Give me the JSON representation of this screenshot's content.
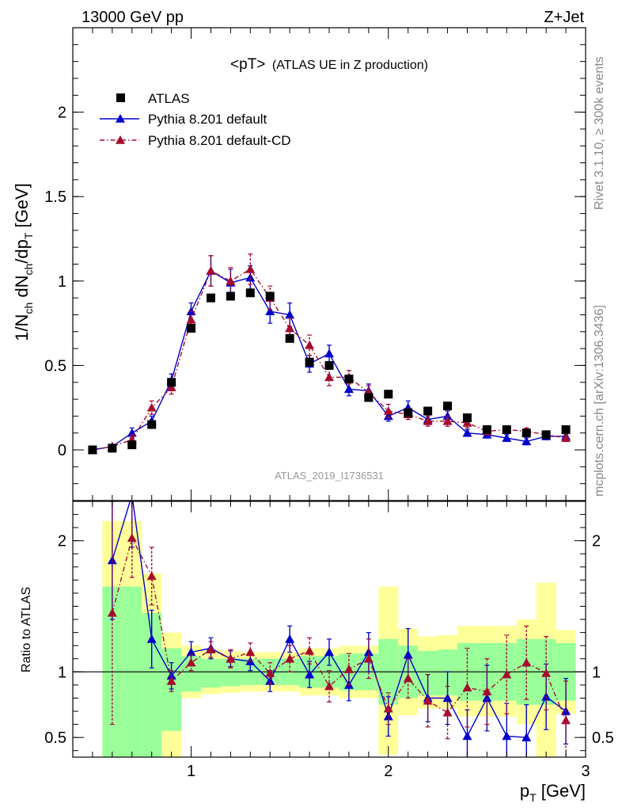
{
  "header": {
    "energy_label": "13000 GeV pp",
    "process_label": "Z+Jet",
    "plot_title_main": "<pT>",
    "plot_title_sub": "(ATLAS UE in Z production)",
    "analysis_id": "ATLAS_2019_I1736531",
    "side_text_top": "Rivet 3.1.10, ≥ 300k events",
    "side_text_bottom": "mcplots.cern.ch [arXiv:1306.3436]"
  },
  "chart_data": [
    {
      "type": "scatter",
      "panel": "main",
      "ylabel": "1/N_ch dN_ch/dp_T [GeV]",
      "xlim": [
        0.4,
        3.0
      ],
      "ylim": [
        -0.3,
        2.5
      ],
      "yticks": [
        0,
        0.5,
        1,
        1.5,
        2
      ],
      "ytick_labels": [
        "0",
        "0.5",
        "1",
        "1.5",
        "2"
      ],
      "legend_position": "top-left",
      "series": [
        {
          "name": "ATLAS",
          "color": "#000000",
          "marker": "square",
          "x": [
            0.5,
            0.6,
            0.7,
            0.8,
            0.9,
            1.0,
            1.1,
            1.2,
            1.3,
            1.4,
            1.5,
            1.6,
            1.7,
            1.8,
            1.9,
            2.0,
            2.1,
            2.2,
            2.3,
            2.4,
            2.5,
            2.6,
            2.7,
            2.8,
            2.9
          ],
          "y": [
            0.0,
            0.01,
            0.03,
            0.15,
            0.4,
            0.72,
            0.9,
            0.91,
            0.93,
            0.91,
            0.66,
            0.52,
            0.5,
            0.42,
            0.31,
            0.33,
            0.22,
            0.23,
            0.26,
            0.19,
            0.12,
            0.12,
            0.1,
            0.09,
            0.12
          ]
        },
        {
          "name": "Pythia 8.201 default",
          "color": "#0000cc",
          "marker": "triangle",
          "line": "solid",
          "x": [
            0.5,
            0.6,
            0.7,
            0.8,
            0.9,
            1.0,
            1.1,
            1.2,
            1.3,
            1.4,
            1.5,
            1.6,
            1.7,
            1.8,
            1.9,
            2.0,
            2.1,
            2.2,
            2.3,
            2.4,
            2.5,
            2.6,
            2.7,
            2.8,
            2.9
          ],
          "y": [
            0.0,
            0.02,
            0.1,
            0.17,
            0.41,
            0.82,
            1.06,
            0.99,
            1.02,
            0.82,
            0.8,
            0.51,
            0.57,
            0.36,
            0.35,
            0.2,
            0.25,
            0.18,
            0.2,
            0.1,
            0.09,
            0.07,
            0.05,
            0.08,
            0.08
          ],
          "err": [
            0,
            0.01,
            0.03,
            0.03,
            0.04,
            0.05,
            0.09,
            0.08,
            0.07,
            0.07,
            0.07,
            0.05,
            0.05,
            0.04,
            0.04,
            0.03,
            0.04,
            0.03,
            0.03,
            0.02,
            0.02,
            0.02,
            0.02,
            0.02,
            0.02
          ]
        },
        {
          "name": "Pythia 8.201 default-CD",
          "color": "#a50c2e",
          "marker": "triangle",
          "line": "dash-dot",
          "x": [
            0.5,
            0.6,
            0.7,
            0.8,
            0.9,
            1.0,
            1.1,
            1.2,
            1.3,
            1.4,
            1.5,
            1.6,
            1.7,
            1.8,
            1.9,
            2.0,
            2.1,
            2.2,
            2.3,
            2.4,
            2.5,
            2.6,
            2.7,
            2.8,
            2.9
          ],
          "y": [
            0.0,
            0.02,
            0.06,
            0.25,
            0.37,
            0.77,
            1.06,
            1.0,
            1.07,
            0.9,
            0.72,
            0.62,
            0.43,
            0.43,
            0.34,
            0.23,
            0.21,
            0.17,
            0.17,
            0.16,
            0.11,
            0.12,
            0.11,
            0.09,
            0.07
          ],
          "err": [
            0,
            0.01,
            0.03,
            0.04,
            0.04,
            0.05,
            0.09,
            0.08,
            0.09,
            0.07,
            0.06,
            0.06,
            0.05,
            0.04,
            0.04,
            0.04,
            0.03,
            0.03,
            0.03,
            0.03,
            0.02,
            0.02,
            0.02,
            0.02,
            0.02
          ]
        }
      ]
    },
    {
      "type": "scatter",
      "panel": "ratio",
      "xlabel": "p_T [GeV]",
      "ylabel": "Ratio to ATLAS",
      "xlim": [
        0.4,
        3.0
      ],
      "ylim": [
        0.35,
        2.3
      ],
      "xticks": [
        1,
        2,
        3
      ],
      "xtick_labels": [
        "1",
        "2",
        "3"
      ],
      "yticks": [
        0.5,
        1,
        2
      ],
      "ytick_labels": [
        "0.5",
        "1",
        "2"
      ],
      "reference_line": 1,
      "bands": {
        "bin_edges": [
          0.55,
          0.65,
          0.75,
          0.85,
          0.95,
          1.05,
          1.15,
          1.25,
          1.35,
          1.45,
          1.55,
          1.65,
          1.75,
          1.85,
          1.95,
          2.05,
          2.15,
          2.25,
          2.35,
          2.45,
          2.55,
          2.65,
          2.75,
          2.85,
          2.95
        ],
        "inner_color": "#99ff99",
        "outer_color": "#ffff99",
        "inner_low": [
          0.35,
          0.35,
          0.35,
          0.55,
          0.85,
          0.88,
          0.89,
          0.9,
          0.9,
          0.9,
          0.88,
          0.88,
          0.86,
          0.86,
          0.75,
          0.8,
          0.82,
          0.82,
          0.78,
          0.78,
          0.78,
          0.75,
          0.75,
          0.78
        ],
        "inner_high": [
          1.65,
          1.65,
          1.45,
          1.18,
          1.12,
          1.1,
          1.1,
          1.1,
          1.1,
          1.1,
          1.12,
          1.12,
          1.14,
          1.14,
          1.25,
          1.2,
          1.16,
          1.17,
          1.22,
          1.22,
          1.22,
          1.25,
          1.25,
          1.22
        ],
        "outer_low": [
          0.35,
          0.35,
          0.35,
          0.35,
          0.8,
          0.83,
          0.84,
          0.85,
          0.85,
          0.85,
          0.82,
          0.82,
          0.8,
          0.8,
          0.37,
          0.67,
          0.72,
          0.72,
          0.66,
          0.66,
          0.66,
          0.6,
          0.35,
          0.68
        ],
        "outer_high": [
          2.15,
          2.15,
          1.75,
          1.3,
          1.2,
          1.17,
          1.16,
          1.15,
          1.15,
          1.15,
          1.18,
          1.18,
          1.2,
          1.2,
          1.65,
          1.33,
          1.27,
          1.28,
          1.35,
          1.35,
          1.35,
          1.4,
          1.68,
          1.32
        ]
      },
      "series": [
        {
          "name": "Pythia 8.201 default",
          "color": "#0000cc",
          "x": [
            0.6,
            0.7,
            0.8,
            0.9,
            1.0,
            1.1,
            1.2,
            1.3,
            1.4,
            1.5,
            1.6,
            1.7,
            1.8,
            1.9,
            2.0,
            2.1,
            2.2,
            2.3,
            2.4,
            2.5,
            2.6,
            2.7,
            2.8,
            2.9
          ],
          "y": [
            1.85,
            2.35,
            1.25,
            0.97,
            1.15,
            1.18,
            1.1,
            1.08,
            0.93,
            1.25,
            0.98,
            1.15,
            0.9,
            1.15,
            0.66,
            1.13,
            0.8,
            0.8,
            0.51,
            0.8,
            0.51,
            0.5,
            0.81,
            0.7
          ],
          "err": [
            0.45,
            0.4,
            0.22,
            0.1,
            0.08,
            0.08,
            0.06,
            0.07,
            0.08,
            0.1,
            0.1,
            0.1,
            0.12,
            0.15,
            0.15,
            0.2,
            0.18,
            0.2,
            0.2,
            0.25,
            0.25,
            0.25,
            0.25,
            0.25
          ]
        },
        {
          "name": "Pythia 8.201 default-CD",
          "color": "#a50c2e",
          "x": [
            0.6,
            0.7,
            0.8,
            0.9,
            1.0,
            1.1,
            1.2,
            1.3,
            1.4,
            1.5,
            1.6,
            1.7,
            1.8,
            1.9,
            2.0,
            2.1,
            2.2,
            2.3,
            2.4,
            2.5,
            2.6,
            2.7,
            2.8,
            2.9
          ],
          "y": [
            1.45,
            2.02,
            1.73,
            0.93,
            1.07,
            1.17,
            1.1,
            1.15,
            0.99,
            1.1,
            1.16,
            0.89,
            1.02,
            1.1,
            0.72,
            0.95,
            0.78,
            0.69,
            0.88,
            0.85,
            0.98,
            1.07,
            0.99,
            0.63
          ],
          "err": [
            0.85,
            0.3,
            0.22,
            0.08,
            0.06,
            0.06,
            0.07,
            0.07,
            0.08,
            0.1,
            0.1,
            0.12,
            0.12,
            0.15,
            0.12,
            0.15,
            0.2,
            0.2,
            0.3,
            0.25,
            0.3,
            0.28,
            0.28,
            0.3
          ]
        }
      ]
    }
  ]
}
